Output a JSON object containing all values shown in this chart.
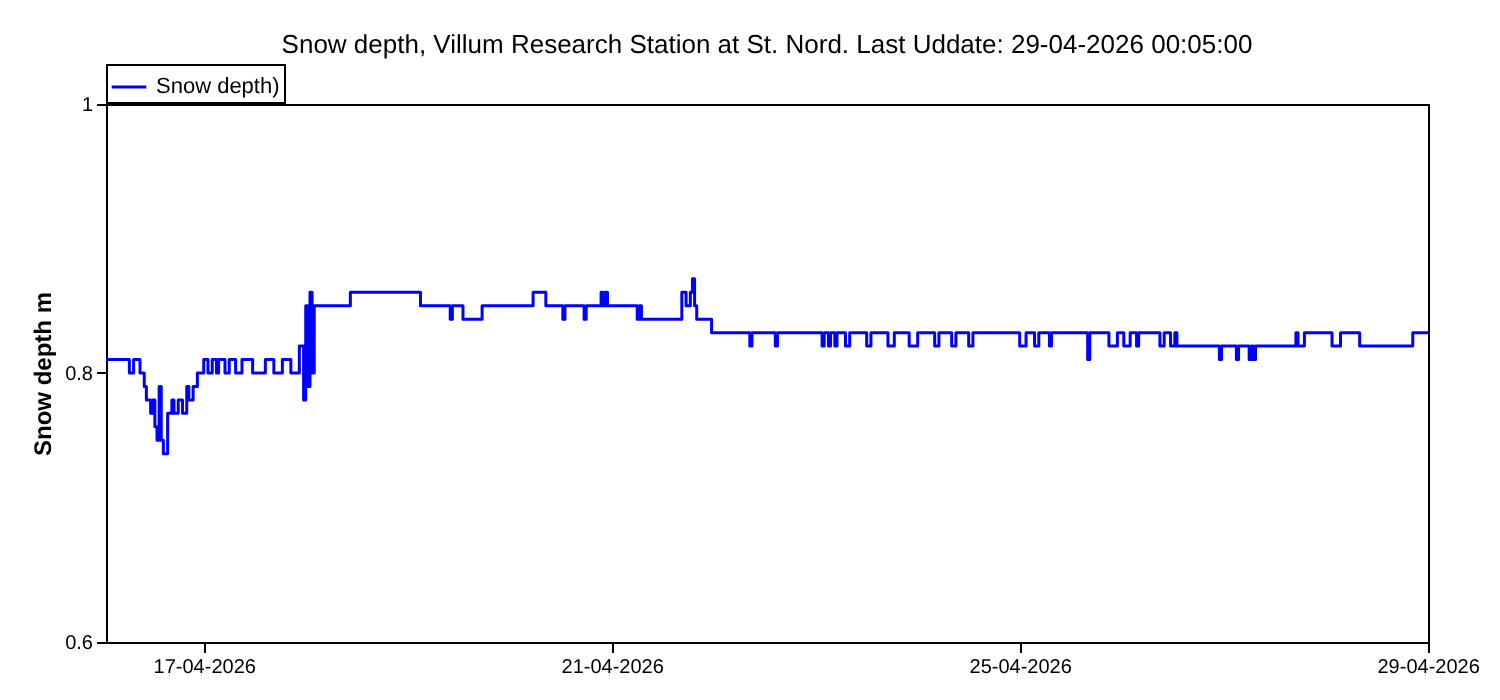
{
  "chart_data": {
    "type": "step",
    "title": "Snow depth, Villum Research Station at St. Nord. Last Uddate: 29-04-2026 00:05:00",
    "ylabel": "Snow depth m",
    "legend": "top left",
    "xlim": [
      "2026-04-16T01:00",
      "2026-04-29T00:05"
    ],
    "xticks": [
      {
        "value": "2026-04-17",
        "label": "17-04-2026"
      },
      {
        "value": "2026-04-21",
        "label": "21-04-2026"
      },
      {
        "value": "2026-04-25",
        "label": "25-04-2026"
      },
      {
        "value": "2026-04-29",
        "label": "29-04-2026"
      }
    ],
    "ylim": [
      0.6,
      1
    ],
    "yticks": [
      0.6,
      0.8,
      1
    ],
    "x": [
      "2026-04-16T01:00",
      "2026-04-16T06:30",
      "2026-04-16T07:30",
      "2026-04-16T09:00",
      "2026-04-16T10:00",
      "2026-04-16T10:30",
      "2026-04-16T11:30",
      "2026-04-16T12:00",
      "2026-04-16T12:30",
      "2026-04-16T13:00",
      "2026-04-16T13:30",
      "2026-04-16T14:00",
      "2026-04-16T14:30",
      "2026-04-16T15:30",
      "2026-04-16T16:30",
      "2026-04-16T17:00",
      "2026-04-16T18:00",
      "2026-04-16T19:00",
      "2026-04-16T20:00",
      "2026-04-16T20:30",
      "2026-04-16T21:30",
      "2026-04-16T22:30",
      "2026-04-17T00:00",
      "2026-04-17T01:00",
      "2026-04-17T02:00",
      "2026-04-17T03:00",
      "2026-04-17T03:30",
      "2026-04-17T05:00",
      "2026-04-17T06:00",
      "2026-04-17T07:30",
      "2026-04-17T09:00",
      "2026-04-17T11:30",
      "2026-04-17T14:30",
      "2026-04-17T16:30",
      "2026-04-17T18:30",
      "2026-04-17T20:30",
      "2026-04-17T22:30",
      "2026-04-17T23:30",
      "2026-04-18T00:00",
      "2026-04-18T00:30",
      "2026-04-18T01:00",
      "2026-04-18T01:30",
      "2026-04-18T02:00",
      "2026-04-18T10:30",
      "2026-04-19T03:00",
      "2026-04-19T10:00",
      "2026-04-19T10:30",
      "2026-04-19T13:00",
      "2026-04-19T17:30",
      "2026-04-20T05:30",
      "2026-04-20T08:30",
      "2026-04-20T12:30",
      "2026-04-20T13:00",
      "2026-04-20T17:30",
      "2026-04-20T18:00",
      "2026-04-20T21:30",
      "2026-04-20T22:00",
      "2026-04-20T22:30",
      "2026-04-20T23:00",
      "2026-04-21T06:00",
      "2026-04-21T06:30",
      "2026-04-21T07:00",
      "2026-04-21T16:30",
      "2026-04-21T17:30",
      "2026-04-21T18:30",
      "2026-04-21T19:00",
      "2026-04-21T19:30",
      "2026-04-21T20:00",
      "2026-04-21T23:30",
      "2026-04-22T08:30",
      "2026-04-22T09:00",
      "2026-04-22T14:30",
      "2026-04-22T15:00",
      "2026-04-23T01:30",
      "2026-04-23T02:00",
      "2026-04-23T03:00",
      "2026-04-23T03:30",
      "2026-04-23T04:30",
      "2026-04-23T05:00",
      "2026-04-23T07:00",
      "2026-04-23T08:00",
      "2026-04-23T12:00",
      "2026-04-23T13:00",
      "2026-04-23T17:00",
      "2026-04-23T18:30",
      "2026-04-23T22:00",
      "2026-04-24T00:00",
      "2026-04-24T04:00",
      "2026-04-24T05:00",
      "2026-04-24T08:00",
      "2026-04-24T09:00",
      "2026-04-24T12:00",
      "2026-04-24T13:00",
      "2026-04-25T00:00",
      "2026-04-25T01:30",
      "2026-04-25T03:30",
      "2026-04-25T04:30",
      "2026-04-25T07:00",
      "2026-04-25T07:30",
      "2026-04-25T16:00",
      "2026-04-25T16:30",
      "2026-04-25T21:00",
      "2026-04-25T23:00",
      "2026-04-26T00:30",
      "2026-04-26T02:00",
      "2026-04-26T03:30",
      "2026-04-26T04:00",
      "2026-04-26T09:00",
      "2026-04-26T10:00",
      "2026-04-26T11:30",
      "2026-04-26T12:30",
      "2026-04-26T13:00",
      "2026-04-26T23:00",
      "2026-04-26T23:30",
      "2026-04-27T03:00",
      "2026-04-27T03:30",
      "2026-04-27T06:00",
      "2026-04-27T06:30",
      "2026-04-27T07:00",
      "2026-04-27T07:30",
      "2026-04-27T17:00",
      "2026-04-27T17:30",
      "2026-04-27T19:00",
      "2026-04-28T01:30",
      "2026-04-28T03:30",
      "2026-04-28T08:00",
      "2026-04-28T20:30",
      "2026-04-29T00:05"
    ],
    "series": [
      {
        "name": "Snow depth)",
        "color": "#0000ff",
        "values": [
          0.81,
          0.8,
          0.81,
          0.8,
          0.79,
          0.78,
          0.77,
          0.78,
          0.76,
          0.75,
          0.79,
          0.75,
          0.74,
          0.77,
          0.78,
          0.77,
          0.78,
          0.77,
          0.79,
          0.78,
          0.79,
          0.8,
          0.81,
          0.8,
          0.81,
          0.8,
          0.81,
          0.8,
          0.81,
          0.8,
          0.81,
          0.8,
          0.81,
          0.8,
          0.81,
          0.8,
          0.82,
          0.78,
          0.85,
          0.79,
          0.86,
          0.8,
          0.85,
          0.86,
          0.85,
          0.84,
          0.85,
          0.84,
          0.85,
          0.86,
          0.85,
          0.84,
          0.85,
          0.84,
          0.85,
          0.86,
          0.85,
          0.86,
          0.85,
          0.84,
          0.85,
          0.84,
          0.86,
          0.85,
          0.86,
          0.87,
          0.85,
          0.84,
          0.83,
          0.82,
          0.83,
          0.82,
          0.83,
          0.82,
          0.83,
          0.82,
          0.83,
          0.82,
          0.83,
          0.82,
          0.83,
          0.82,
          0.83,
          0.82,
          0.83,
          0.82,
          0.83,
          0.82,
          0.83,
          0.82,
          0.83,
          0.82,
          0.83,
          0.82,
          0.83,
          0.82,
          0.83,
          0.82,
          0.83,
          0.81,
          0.83,
          0.82,
          0.83,
          0.82,
          0.83,
          0.82,
          0.83,
          0.82,
          0.83,
          0.82,
          0.83,
          0.82,
          0.81,
          0.82,
          0.81,
          0.82,
          0.81,
          0.82,
          0.81,
          0.82,
          0.83,
          0.82,
          0.83,
          0.82,
          0.83,
          0.82,
          0.83,
          0.83
        ]
      }
    ]
  }
}
